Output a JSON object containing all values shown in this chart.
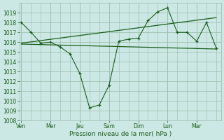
{
  "xlabel": "Pression niveau de la mer( hPa )",
  "ylim": [
    1008,
    1020
  ],
  "yticks": [
    1008,
    1009,
    1010,
    1011,
    1012,
    1013,
    1014,
    1015,
    1016,
    1017,
    1018,
    1019
  ],
  "xtick_labels": [
    "Ven",
    "Mer",
    "Jeu",
    "Sam",
    "Dim",
    "Lun",
    "Mar"
  ],
  "xtick_positions": [
    0,
    3,
    6,
    9,
    12,
    15,
    18
  ],
  "xlim": [
    -0.2,
    20.5
  ],
  "bg_color": "#cce8e4",
  "line_color": "#1a5c1a",
  "grid_color": "#99bbaa",
  "series1_x": [
    0,
    1,
    2,
    3,
    4,
    5,
    6,
    7,
    8,
    9,
    10,
    11,
    12,
    13,
    14,
    15,
    16,
    17,
    18,
    19,
    20
  ],
  "series1_y": [
    1018.0,
    1017.0,
    1015.9,
    1016.0,
    1015.5,
    1014.8,
    1012.8,
    1009.3,
    1009.6,
    1011.6,
    1016.1,
    1016.3,
    1016.4,
    1018.2,
    1019.1,
    1019.5,
    1017.0,
    1017.0,
    1016.1,
    1018.0,
    1015.4
  ],
  "series2_x": [
    0,
    20
  ],
  "series2_y": [
    1015.8,
    1015.3
  ],
  "series3_x": [
    0,
    20
  ],
  "series3_y": [
    1015.9,
    1018.5
  ],
  "vline_positions": [
    0,
    3,
    6,
    9,
    12,
    15,
    18
  ],
  "fig_width": 3.2,
  "fig_height": 2.0,
  "dpi": 100
}
